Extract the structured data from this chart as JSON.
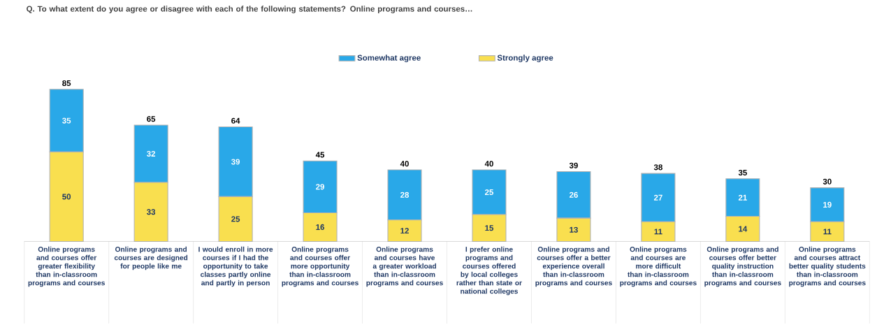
{
  "chart_data": {
    "type": "bar",
    "stacked": true,
    "title": "Q. To what extent do you agree or disagree with each of the following statements? Online programs and courses…",
    "categories": [
      "Online programs and courses offer greater flexibility than in-classroom programs and courses",
      "Online programs and courses are designed for people like me",
      "I would enroll in more courses if I had the opportunity to take classes partly online and partly in person",
      "Online programs and courses offer more opportunity than in-classroom programs and courses",
      "Online programs and courses have a greater workload than in-classroom programs and courses",
      "I prefer online programs and courses offered by local colleges rather than state or national colleges",
      "Online programs and courses offer a better experience overall than in-classroom programs and courses",
      "Online programs and courses are more difficult than in-classroom programs and courses",
      "Online programs and courses offer better quality instruction than in-classroom programs and courses",
      "Online programs and courses attract better quality students than in-classroom programs and courses"
    ],
    "series": [
      {
        "name": "Strongly agree",
        "color": "#f9df4f",
        "values": [
          50,
          33,
          25,
          16,
          12,
          15,
          13,
          11,
          14,
          11
        ]
      },
      {
        "name": "Somewhat agree",
        "color": "#29a8e8",
        "values": [
          35,
          32,
          39,
          29,
          28,
          25,
          26,
          27,
          21,
          19
        ]
      }
    ],
    "totals": [
      "85",
      "65",
      "64",
      "45",
      "40",
      "40",
      "39",
      "38",
      "35",
      "30"
    ],
    "data_labels": true,
    "legend": "top"
  }
}
